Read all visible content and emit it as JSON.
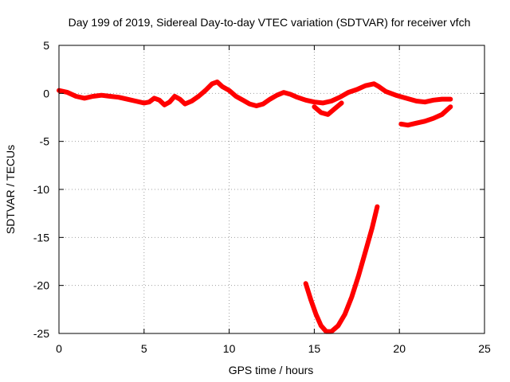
{
  "chart_data": {
    "type": "line",
    "title": "Day 199 of 2019, Sidereal Day-to-day VTEC variation (SDTVAR) for receiver vfch",
    "xlabel": "GPS time / hours",
    "ylabel": "SDTVAR / TECUs",
    "xlim": [
      0,
      25
    ],
    "ylim": [
      -25,
      5
    ],
    "xticks": [
      0,
      5,
      10,
      15,
      20,
      25
    ],
    "yticks": [
      -25,
      -20,
      -15,
      -10,
      -5,
      0,
      5
    ],
    "xtick_labels": [
      "0",
      "5",
      "10",
      "15",
      "20",
      "25"
    ],
    "ytick_labels": [
      "-25",
      "-20",
      "-15",
      "-10",
      "-5",
      "0",
      "5"
    ],
    "grid": true,
    "legend": false,
    "series_color": "#ff0000",
    "series": [
      {
        "name": "main",
        "points": [
          [
            0,
            0.3
          ],
          [
            0.5,
            0.1
          ],
          [
            1,
            -0.3
          ],
          [
            1.5,
            -0.5
          ],
          [
            2,
            -0.3
          ],
          [
            2.5,
            -0.2
          ],
          [
            3,
            -0.3
          ],
          [
            3.5,
            -0.4
          ],
          [
            4,
            -0.6
          ],
          [
            4.5,
            -0.8
          ],
          [
            5,
            -1.0
          ],
          [
            5.3,
            -0.9
          ],
          [
            5.6,
            -0.5
          ],
          [
            5.9,
            -0.7
          ],
          [
            6.2,
            -1.2
          ],
          [
            6.5,
            -0.9
          ],
          [
            6.8,
            -0.3
          ],
          [
            7.1,
            -0.6
          ],
          [
            7.4,
            -1.1
          ],
          [
            7.8,
            -0.8
          ],
          [
            8.2,
            -0.3
          ],
          [
            8.6,
            0.3
          ],
          [
            9.0,
            1.0
          ],
          [
            9.3,
            1.2
          ],
          [
            9.6,
            0.7
          ],
          [
            10.0,
            0.3
          ],
          [
            10.4,
            -0.3
          ],
          [
            10.8,
            -0.7
          ],
          [
            11.2,
            -1.1
          ],
          [
            11.6,
            -1.3
          ],
          [
            12.0,
            -1.1
          ],
          [
            12.4,
            -0.6
          ],
          [
            12.8,
            -0.2
          ],
          [
            13.2,
            0.1
          ],
          [
            13.6,
            -0.1
          ],
          [
            14.0,
            -0.4
          ],
          [
            14.5,
            -0.7
          ],
          [
            15.0,
            -0.9
          ],
          [
            15.5,
            -1.0
          ],
          [
            16.0,
            -0.8
          ],
          [
            16.5,
            -0.4
          ],
          [
            17.0,
            0.1
          ],
          [
            17.5,
            0.4
          ],
          [
            18.0,
            0.8
          ],
          [
            18.5,
            1.0
          ],
          [
            18.8,
            0.7
          ],
          [
            19.2,
            0.2
          ],
          [
            19.8,
            -0.2
          ],
          [
            20.4,
            -0.5
          ],
          [
            21.0,
            -0.8
          ],
          [
            21.5,
            -0.9
          ],
          [
            22.0,
            -0.7
          ],
          [
            22.5,
            -0.6
          ],
          [
            23.0,
            -0.6
          ]
        ]
      },
      {
        "name": "branch",
        "points": [
          [
            15.0,
            -1.4
          ],
          [
            15.4,
            -2.0
          ],
          [
            15.8,
            -2.2
          ],
          [
            16.2,
            -1.6
          ],
          [
            16.6,
            -1.0
          ]
        ]
      },
      {
        "name": "late",
        "points": [
          [
            20.1,
            -3.2
          ],
          [
            20.5,
            -3.3
          ],
          [
            21.0,
            -3.1
          ],
          [
            21.5,
            -2.9
          ],
          [
            22.0,
            -2.6
          ],
          [
            22.5,
            -2.2
          ],
          [
            23.0,
            -1.4
          ]
        ]
      },
      {
        "name": "dip",
        "points": [
          [
            14.5,
            -19.8
          ],
          [
            14.8,
            -21.5
          ],
          [
            15.1,
            -23.0
          ],
          [
            15.4,
            -24.2
          ],
          [
            15.7,
            -24.8
          ],
          [
            16.0,
            -24.8
          ],
          [
            16.4,
            -24.2
          ],
          [
            16.8,
            -23.0
          ],
          [
            17.2,
            -21.2
          ],
          [
            17.6,
            -19.0
          ],
          [
            18.0,
            -16.5
          ],
          [
            18.4,
            -14.0
          ],
          [
            18.7,
            -11.8
          ]
        ]
      }
    ]
  }
}
